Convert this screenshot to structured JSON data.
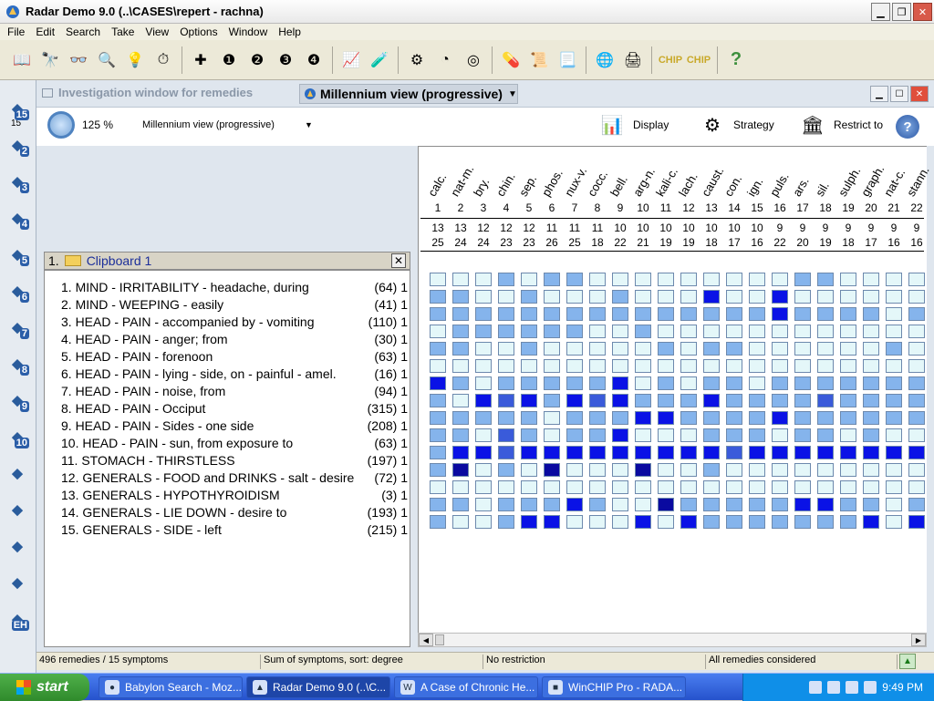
{
  "app": {
    "title": "Radar Demo 9.0 (..\\CASES\\repert - rachna)"
  },
  "menu": [
    "File",
    "Edit",
    "Search",
    "Take",
    "View",
    "Options",
    "Window",
    "Help"
  ],
  "toolbar_icons": [
    "open-book-icon",
    "binoculars-icon",
    "glasses-icon",
    "magnifier-icon",
    "lightbulb-icon",
    "stopwatch-icon",
    "take-icon",
    "take1-icon",
    "take2-icon",
    "take3-icon",
    "take4-icon",
    "chart-icon",
    "test-tubes-icon",
    "wheel-icon",
    "pie-chart-icon",
    "target-icon",
    "pills-icon",
    "scroll-icon",
    "scroll2-icon",
    "globe-icon",
    "printer-icon",
    "chip-icon",
    "chip2-icon",
    "help-icon"
  ],
  "lefttools": [
    {
      "icon": "case-icon",
      "n": "15"
    },
    {
      "icon": "tool2-icon",
      "n": "2"
    },
    {
      "icon": "tool3-icon",
      "n": "3"
    },
    {
      "icon": "tool4-icon",
      "n": "4"
    },
    {
      "icon": "tool5-icon",
      "n": "5"
    },
    {
      "icon": "tool6-icon",
      "n": "6"
    },
    {
      "icon": "tool7-icon",
      "n": "7"
    },
    {
      "icon": "tool8-icon",
      "n": "8"
    },
    {
      "icon": "tool9-icon",
      "n": "9"
    },
    {
      "icon": "tool10-icon",
      "n": "10"
    },
    {
      "icon": "key-icon",
      "n": ""
    },
    {
      "icon": "bottle-icon",
      "n": ""
    },
    {
      "icon": "pen-icon",
      "n": ""
    },
    {
      "icon": "bulb-icon",
      "n": ""
    },
    {
      "icon": "eh-icon",
      "n": "EH"
    }
  ],
  "lefttools_top_label": "15",
  "doc": {
    "inactive_tab": "Investigation window for remedies",
    "active_tab": "Millennium view (progressive)",
    "zoom": "125 %",
    "view_select": "Millennium view (progressive)",
    "display_label": "Display",
    "strategy_label": "Strategy",
    "restrict_label": "Restrict to"
  },
  "clipboard": {
    "title": "1.",
    "name": "Clipboard 1",
    "rubrics": [
      {
        "text": "1. MIND - IRRITABILITY - headache, during",
        "count": "(64) 1"
      },
      {
        "text": "2. MIND - WEEPING - easily",
        "count": "(41) 1"
      },
      {
        "text": "3. HEAD - PAIN - accompanied by - vomiting",
        "count": "(110) 1"
      },
      {
        "text": "4. HEAD - PAIN - anger; from",
        "count": "(30) 1"
      },
      {
        "text": "5. HEAD - PAIN - forenoon",
        "count": "(63) 1"
      },
      {
        "text": "6. HEAD - PAIN - lying - side, on - painful - amel.",
        "count": "(16) 1"
      },
      {
        "text": "7. HEAD - PAIN - noise, from",
        "count": "(94) 1"
      },
      {
        "text": "8. HEAD - PAIN - Occiput",
        "count": "(315) 1"
      },
      {
        "text": "9. HEAD - PAIN - Sides - one side",
        "count": "(208) 1"
      },
      {
        "text": "10. HEAD - PAIN - sun, from exposure to",
        "count": "(63) 1"
      },
      {
        "text": "11. STOMACH - THIRSTLESS",
        "count": "(197) 1"
      },
      {
        "text": "12. GENERALS - FOOD and DRINKS - salt - desire",
        "count": "(72) 1"
      },
      {
        "text": "13. GENERALS - HYPOTHYROIDISM",
        "count": "(3) 1"
      },
      {
        "text": "14. GENERALS - LIE DOWN - desire to",
        "count": "(193) 1"
      },
      {
        "text": "15. GENERALS - SIDE - left",
        "count": "(215) 1"
      }
    ]
  },
  "remedies": [
    {
      "name": "calc.",
      "rank": "1",
      "sym": "13",
      "deg": "25"
    },
    {
      "name": "nat-m.",
      "rank": "2",
      "sym": "13",
      "deg": "24"
    },
    {
      "name": "bry.",
      "rank": "3",
      "sym": "12",
      "deg": "24"
    },
    {
      "name": "chin.",
      "rank": "4",
      "sym": "12",
      "deg": "23"
    },
    {
      "name": "sep.",
      "rank": "5",
      "sym": "12",
      "deg": "23"
    },
    {
      "name": "phos.",
      "rank": "6",
      "sym": "11",
      "deg": "26"
    },
    {
      "name": "nux-v.",
      "rank": "7",
      "sym": "11",
      "deg": "25"
    },
    {
      "name": "cocc.",
      "rank": "8",
      "sym": "11",
      "deg": "18"
    },
    {
      "name": "bell.",
      "rank": "9",
      "sym": "10",
      "deg": "22"
    },
    {
      "name": "arg-n.",
      "rank": "10",
      "sym": "10",
      "deg": "21"
    },
    {
      "name": "kali-c.",
      "rank": "11",
      "sym": "10",
      "deg": "19"
    },
    {
      "name": "lach.",
      "rank": "12",
      "sym": "10",
      "deg": "19"
    },
    {
      "name": "caust.",
      "rank": "13",
      "sym": "10",
      "deg": "18"
    },
    {
      "name": "con.",
      "rank": "14",
      "sym": "10",
      "deg": "17"
    },
    {
      "name": "ign.",
      "rank": "15",
      "sym": "10",
      "deg": "16"
    },
    {
      "name": "puls.",
      "rank": "16",
      "sym": "9",
      "deg": "22"
    },
    {
      "name": "ars.",
      "rank": "17",
      "sym": "9",
      "deg": "20"
    },
    {
      "name": "sil.",
      "rank": "18",
      "sym": "9",
      "deg": "19"
    },
    {
      "name": "sulph.",
      "rank": "19",
      "sym": "9",
      "deg": "18"
    },
    {
      "name": "graph.",
      "rank": "20",
      "sym": "9",
      "deg": "17"
    },
    {
      "name": "nat-c.",
      "rank": "21",
      "sym": "9",
      "deg": "16"
    },
    {
      "name": "stann.",
      "rank": "22",
      "sym": "9",
      "deg": "16"
    }
  ],
  "grades": [
    [
      1,
      1,
      1,
      2,
      1,
      2,
      2,
      1,
      1,
      1,
      1,
      1,
      1,
      1,
      1,
      1,
      2,
      2,
      1,
      1,
      1,
      1
    ],
    [
      2,
      2,
      1,
      1,
      2,
      1,
      1,
      1,
      2,
      1,
      1,
      1,
      4,
      1,
      1,
      4,
      1,
      1,
      1,
      1,
      1,
      1
    ],
    [
      2,
      2,
      2,
      2,
      2,
      2,
      2,
      2,
      2,
      2,
      2,
      2,
      2,
      2,
      2,
      4,
      2,
      2,
      2,
      2,
      1,
      2
    ],
    [
      1,
      2,
      2,
      2,
      2,
      2,
      2,
      1,
      1,
      2,
      1,
      1,
      1,
      1,
      1,
      1,
      1,
      1,
      1,
      1,
      1,
      1
    ],
    [
      2,
      2,
      1,
      1,
      2,
      1,
      1,
      1,
      1,
      1,
      2,
      1,
      2,
      2,
      1,
      1,
      1,
      1,
      1,
      1,
      2,
      1
    ],
    [
      1,
      1,
      1,
      1,
      1,
      1,
      1,
      1,
      1,
      1,
      1,
      1,
      1,
      1,
      1,
      1,
      1,
      1,
      1,
      1,
      1,
      1
    ],
    [
      4,
      2,
      1,
      2,
      2,
      2,
      2,
      2,
      4,
      1,
      2,
      1,
      2,
      2,
      1,
      2,
      2,
      2,
      2,
      2,
      2,
      2
    ],
    [
      2,
      1,
      4,
      3,
      4,
      2,
      4,
      3,
      4,
      2,
      2,
      2,
      4,
      2,
      2,
      2,
      2,
      3,
      2,
      2,
      2,
      2
    ],
    [
      2,
      2,
      2,
      2,
      2,
      1,
      2,
      2,
      2,
      4,
      4,
      2,
      2,
      2,
      2,
      4,
      2,
      2,
      2,
      2,
      2,
      2
    ],
    [
      2,
      2,
      1,
      3,
      2,
      1,
      2,
      2,
      4,
      1,
      1,
      1,
      2,
      2,
      2,
      1,
      2,
      2,
      1,
      2,
      1,
      1
    ],
    [
      2,
      4,
      4,
      3,
      4,
      4,
      4,
      4,
      4,
      4,
      4,
      4,
      4,
      3,
      4,
      4,
      4,
      4,
      4,
      4,
      4,
      4
    ],
    [
      2,
      5,
      1,
      2,
      1,
      5,
      1,
      1,
      1,
      5,
      1,
      1,
      2,
      1,
      1,
      1,
      1,
      1,
      1,
      1,
      1,
      1
    ],
    [
      1,
      1,
      1,
      1,
      1,
      1,
      1,
      1,
      1,
      1,
      1,
      1,
      1,
      1,
      1,
      1,
      1,
      1,
      1,
      1,
      1,
      1
    ],
    [
      2,
      2,
      1,
      2,
      2,
      2,
      4,
      2,
      1,
      1,
      5,
      2,
      2,
      2,
      2,
      2,
      4,
      4,
      2,
      2,
      1,
      2
    ],
    [
      2,
      1,
      1,
      2,
      4,
      4,
      1,
      1,
      1,
      4,
      1,
      4,
      2,
      2,
      2,
      2,
      2,
      2,
      2,
      4,
      1,
      4
    ]
  ],
  "status": {
    "left": "496 remedies / 15 symptoms",
    "sort": "Sum of symptoms, sort: degree",
    "restrict": "No restriction",
    "considered": "All remedies considered"
  },
  "taskbar": {
    "start": "start",
    "tasks": [
      "Babylon Search - Moz...",
      "Radar Demo 9.0 (..\\C...",
      "A Case of Chronic He...",
      "WinCHIP Pro - RADA..."
    ],
    "clock": "9:49 PM"
  },
  "colors": {
    "grade_scale": [
      "#ffffff",
      "#e4f7f9",
      "#85b4ec",
      "#3a5bda",
      "#0a12e6",
      "#0a0aa0"
    ],
    "taskbar": "#2552cc",
    "tray": "#0f8fe8"
  }
}
